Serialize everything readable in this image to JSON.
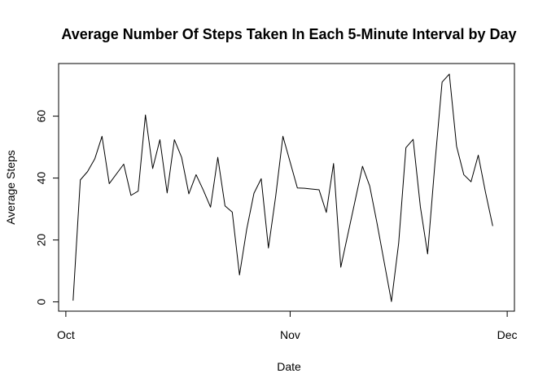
{
  "chart_data": {
    "type": "line",
    "title": "Average Number Of Steps Taken In Each 5-Minute Interval by Day",
    "xlabel": "Date",
    "ylabel": "Average Steps",
    "x_ticks": [
      {
        "value": "2012-10-01",
        "label": "Oct"
      },
      {
        "value": "2012-11-01",
        "label": "Nov"
      },
      {
        "value": "2012-12-01",
        "label": "Dec"
      }
    ],
    "y_ticks": [
      0,
      20,
      40,
      60
    ],
    "xlim": [
      "2012-09-30",
      "2012-12-02"
    ],
    "ylim": [
      -3,
      77
    ],
    "grid": false,
    "legend": "none",
    "line_color": "#000000",
    "series": [
      {
        "x": [
          "2012-10-02",
          "2012-10-03",
          "2012-10-04",
          "2012-10-05",
          "2012-10-06",
          "2012-10-07",
          "2012-10-09",
          "2012-10-10",
          "2012-10-11",
          "2012-10-12",
          "2012-10-13",
          "2012-10-14",
          "2012-10-15",
          "2012-10-16",
          "2012-10-17",
          "2012-10-18",
          "2012-10-19",
          "2012-10-20",
          "2012-10-21",
          "2012-10-22",
          "2012-10-23",
          "2012-10-24",
          "2012-10-25",
          "2012-10-26",
          "2012-10-27",
          "2012-10-28",
          "2012-10-29",
          "2012-10-30",
          "2012-10-31",
          "2012-11-02",
          "2012-11-03",
          "2012-11-05",
          "2012-11-06",
          "2012-11-07",
          "2012-11-08",
          "2012-11-11",
          "2012-11-12",
          "2012-11-13",
          "2012-11-15",
          "2012-11-16",
          "2012-11-17",
          "2012-11-18",
          "2012-11-19",
          "2012-11-20",
          "2012-11-21",
          "2012-11-22",
          "2012-11-23",
          "2012-11-24",
          "2012-11-25",
          "2012-11-26",
          "2012-11-27",
          "2012-11-28",
          "2012-11-29"
        ],
        "y": [
          0.4,
          39.4,
          42.1,
          46.2,
          53.5,
          38.2,
          44.5,
          34.4,
          35.8,
          60.4,
          43.1,
          52.4,
          35.2,
          52.4,
          46.7,
          34.9,
          41.1,
          36.1,
          30.6,
          46.7,
          31.0,
          29.0,
          8.7,
          23.5,
          35.1,
          39.8,
          17.4,
          34.1,
          53.5,
          36.8,
          36.7,
          36.2,
          28.9,
          44.7,
          11.2,
          43.8,
          37.4,
          25.5,
          0.1,
          19.0,
          49.8,
          52.5,
          30.7,
          15.5,
          44.4,
          71.0,
          73.6,
          50.3,
          41.1,
          38.8,
          47.4,
          35.4,
          24.5
        ]
      }
    ]
  }
}
